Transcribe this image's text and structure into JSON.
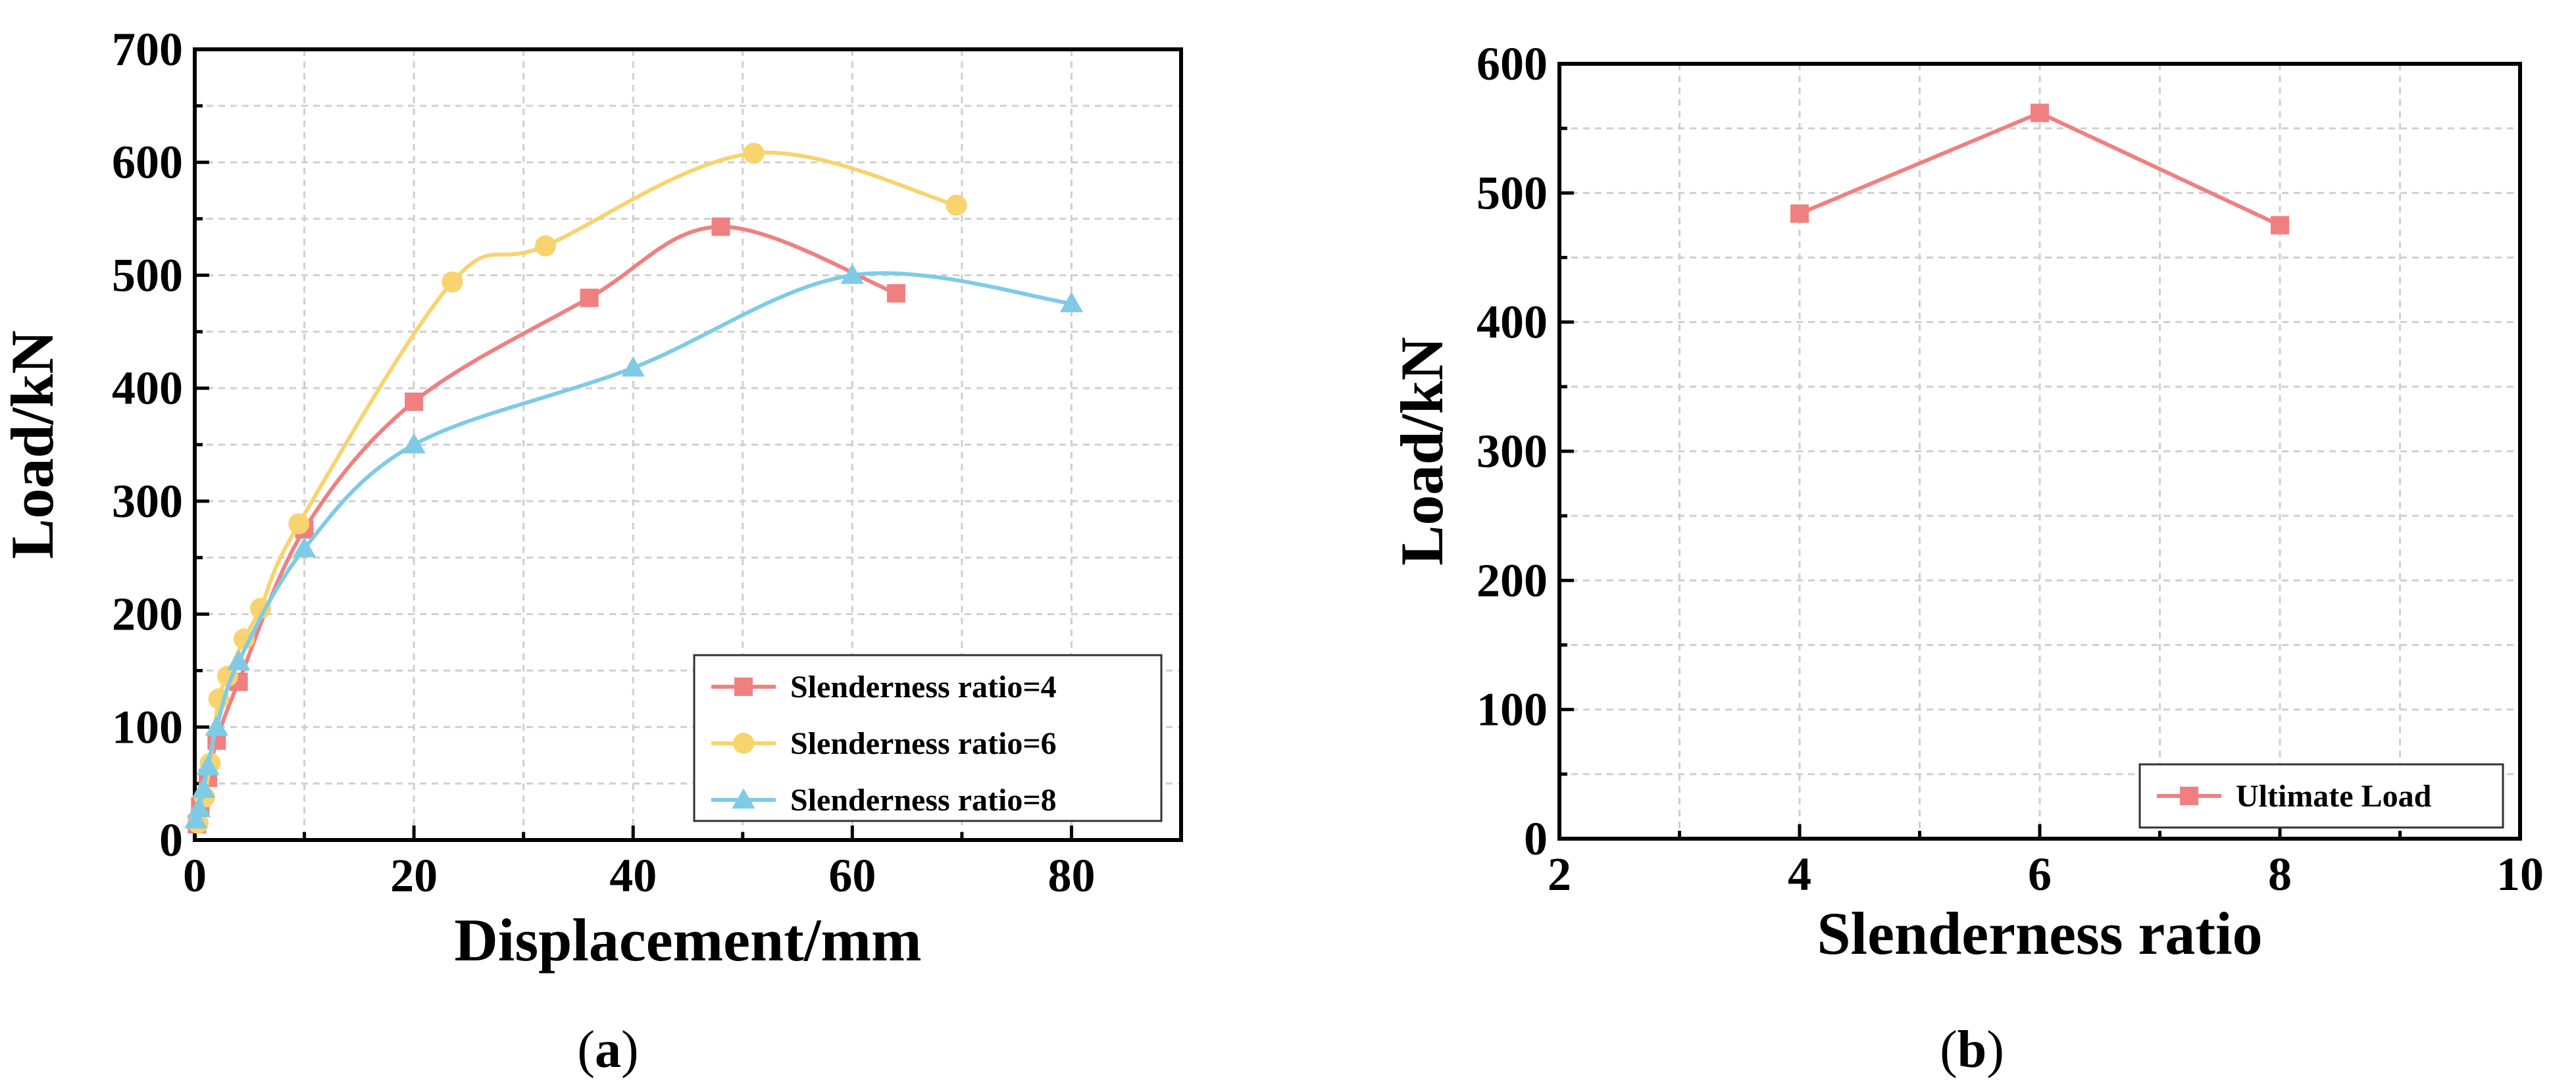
{
  "colors": {
    "series4": "#F08080",
    "series6": "#F8D36E",
    "series8": "#7FCBE6",
    "ultimate": "#F08080"
  },
  "chart_data": [
    {
      "id": "a",
      "type": "line",
      "caption_open": "(",
      "caption_letter": "a",
      "caption_close": ")",
      "title": "",
      "xlabel": "Displacement/mm",
      "ylabel": "Load/kN",
      "xlim": [
        0,
        90
      ],
      "ylim": [
        0,
        700
      ],
      "xticks": [
        0,
        20,
        40,
        60,
        80
      ],
      "yticks": [
        0,
        100,
        200,
        300,
        400,
        500,
        600,
        700
      ],
      "grid": true,
      "legend_position": "bottom-right",
      "series": [
        {
          "name": "Slenderness ratio=4",
          "color_key": "series4",
          "marker": "square",
          "x": [
            0.2,
            0.5,
            1.2,
            2,
            4,
            10,
            20,
            36,
            48,
            64
          ],
          "y": [
            14,
            30,
            55,
            88,
            140,
            275,
            388,
            480,
            543,
            484
          ]
        },
        {
          "name": "Slenderness ratio=6",
          "color_key": "series6",
          "marker": "circle",
          "x": [
            0.3,
            0.9,
            1.4,
            2.2,
            3,
            4.5,
            6,
            9.5,
            23.5,
            32,
            51,
            69.5
          ],
          "y": [
            15,
            38,
            68,
            125,
            145,
            178,
            205,
            280,
            494,
            526,
            608,
            562
          ],
          "smooth": true
        },
        {
          "name": "Slenderness ratio=8",
          "color_key": "series8",
          "marker": "triangle",
          "x": [
            0.1,
            0.4,
            0.8,
            1.2,
            2,
            4,
            10,
            20,
            40,
            60,
            80
          ],
          "y": [
            18,
            28,
            45,
            65,
            100,
            158,
            258,
            350,
            418,
            500,
            475
          ]
        }
      ]
    },
    {
      "id": "b",
      "type": "line",
      "caption_open": "(",
      "caption_letter": "b",
      "caption_close": ")",
      "title": "",
      "xlabel": "Slenderness ratio",
      "ylabel": "Load/kN",
      "xlim": [
        2,
        10
      ],
      "ylim": [
        0,
        600
      ],
      "xticks": [
        2,
        4,
        6,
        8,
        10
      ],
      "yticks": [
        0,
        100,
        200,
        300,
        400,
        500,
        600
      ],
      "grid": true,
      "legend_position": "bottom-right",
      "series": [
        {
          "name": "Ultimate Load",
          "color_key": "ultimate",
          "marker": "square",
          "x": [
            4,
            6,
            8
          ],
          "y": [
            484,
            562,
            475
          ]
        }
      ]
    }
  ]
}
